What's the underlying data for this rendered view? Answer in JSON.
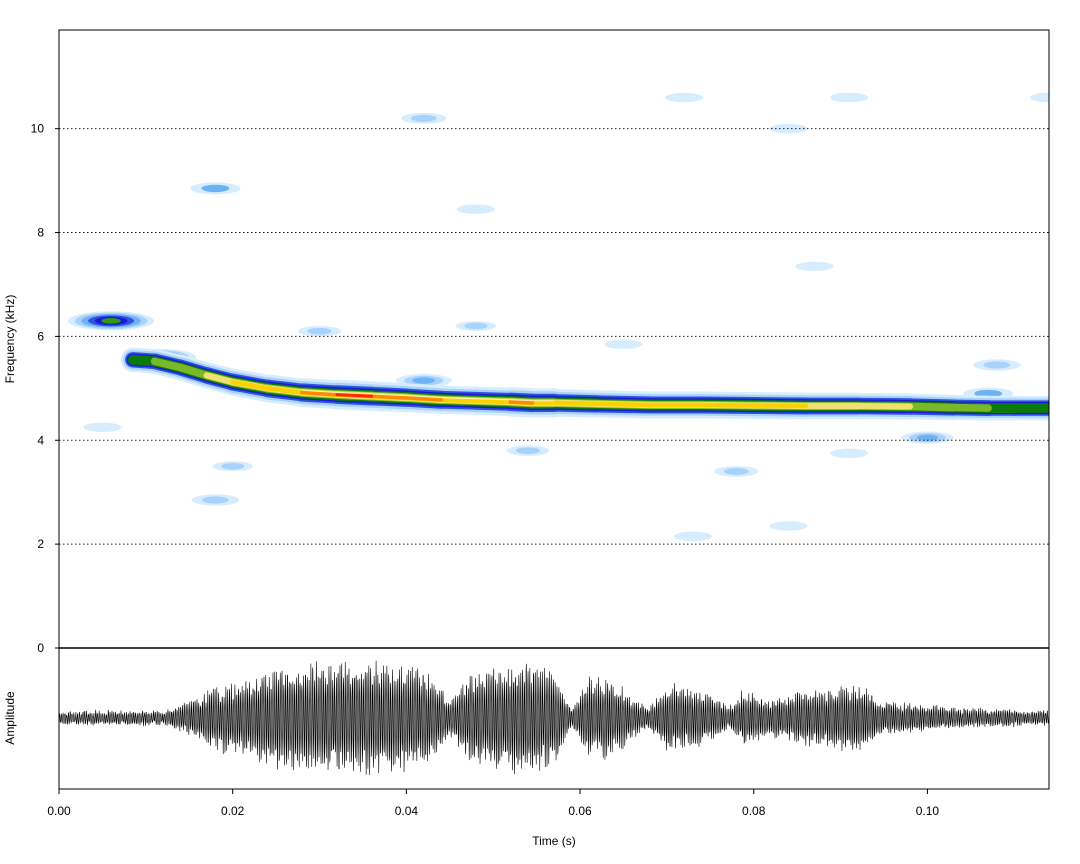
{
  "chart_data": [
    {
      "type": "heatmap",
      "panel": "spectrogram",
      "xlabel": "Time (s)",
      "ylabel": "Frequency (kHz)",
      "xlim": [
        0,
        0.114
      ],
      "ylim": [
        0,
        11.9
      ],
      "yticks": [
        0,
        2,
        4,
        6,
        8,
        10
      ],
      "grid": "horizontal dotted at y ticks",
      "colormap": [
        "#ffffff",
        "#d6ecff",
        "#a9d2fb",
        "#6fb2f2",
        "#2f52e0",
        "#1a1ad6",
        "#0a7a0a",
        "#2f9a13",
        "#7ab82a",
        "#f0e070",
        "#ffd000",
        "#ff8a00",
        "#ff2a00",
        "#ff0000"
      ],
      "main_contour": [
        {
          "t": 0.0085,
          "f": 5.55,
          "level": 0.5
        },
        {
          "t": 0.011,
          "f": 5.52,
          "level": 0.55
        },
        {
          "t": 0.014,
          "f": 5.4,
          "level": 0.6
        },
        {
          "t": 0.017,
          "f": 5.25,
          "level": 0.65
        },
        {
          "t": 0.02,
          "f": 5.12,
          "level": 0.72
        },
        {
          "t": 0.024,
          "f": 5.0,
          "level": 0.78
        },
        {
          "t": 0.028,
          "f": 4.92,
          "level": 0.85
        },
        {
          "t": 0.032,
          "f": 4.88,
          "level": 0.95
        },
        {
          "t": 0.036,
          "f": 4.85,
          "level": 0.97
        },
        {
          "t": 0.04,
          "f": 4.82,
          "level": 0.9
        },
        {
          "t": 0.044,
          "f": 4.78,
          "level": 0.85
        },
        {
          "t": 0.048,
          "f": 4.76,
          "level": 0.82
        },
        {
          "t": 0.052,
          "f": 4.74,
          "level": 0.88
        },
        {
          "t": 0.0545,
          "f": 4.72,
          "level": 1.0
        },
        {
          "t": 0.057,
          "f": 4.72,
          "level": 0.82
        },
        {
          "t": 0.062,
          "f": 4.7,
          "level": 0.76
        },
        {
          "t": 0.068,
          "f": 4.68,
          "level": 0.74
        },
        {
          "t": 0.074,
          "f": 4.68,
          "level": 0.73
        },
        {
          "t": 0.08,
          "f": 4.67,
          "level": 0.74
        },
        {
          "t": 0.086,
          "f": 4.66,
          "level": 0.73
        },
        {
          "t": 0.092,
          "f": 4.66,
          "level": 0.7
        },
        {
          "t": 0.098,
          "f": 4.65,
          "level": 0.66
        },
        {
          "t": 0.103,
          "f": 4.63,
          "level": 0.6
        },
        {
          "t": 0.107,
          "f": 4.62,
          "level": 0.55
        },
        {
          "t": 0.11,
          "f": 4.62,
          "level": 0.52
        },
        {
          "t": 0.114,
          "f": 4.62,
          "level": 0.5
        }
      ],
      "noise_blobs": [
        {
          "t": 0.006,
          "f": 6.3,
          "level": 0.5
        },
        {
          "t": 0.0115,
          "f": 5.6,
          "level": 0.4
        },
        {
          "t": 0.018,
          "f": 8.85,
          "level": 0.2
        },
        {
          "t": 0.018,
          "f": 2.85,
          "level": 0.18
        },
        {
          "t": 0.02,
          "f": 3.5,
          "level": 0.12
        },
        {
          "t": 0.042,
          "f": 10.2,
          "level": 0.16
        },
        {
          "t": 0.042,
          "f": 5.15,
          "level": 0.25
        },
        {
          "t": 0.03,
          "f": 6.1,
          "level": 0.14
        },
        {
          "t": 0.048,
          "f": 6.2,
          "level": 0.12
        },
        {
          "t": 0.054,
          "f": 3.8,
          "level": 0.14
        },
        {
          "t": 0.078,
          "f": 3.4,
          "level": 0.15
        },
        {
          "t": 0.073,
          "f": 2.15,
          "level": 0.1
        },
        {
          "t": 0.1,
          "f": 4.05,
          "level": 0.22
        },
        {
          "t": 0.107,
          "f": 4.9,
          "level": 0.2
        },
        {
          "t": 0.108,
          "f": 5.45,
          "level": 0.18
        },
        {
          "t": 0.084,
          "f": 10.0,
          "level": 0.1
        },
        {
          "t": 0.072,
          "f": 10.6,
          "level": 0.1
        },
        {
          "t": 0.091,
          "f": 10.6,
          "level": 0.1
        },
        {
          "t": 0.114,
          "f": 10.6,
          "level": 0.1
        },
        {
          "t": 0.005,
          "f": 4.25,
          "level": 0.1
        },
        {
          "t": 0.065,
          "f": 5.85,
          "level": 0.1
        },
        {
          "t": 0.091,
          "f": 3.75,
          "level": 0.1
        },
        {
          "t": 0.048,
          "f": 8.45,
          "level": 0.1
        },
        {
          "t": 0.087,
          "f": 7.35,
          "level": 0.1
        },
        {
          "t": 0.084,
          "f": 2.35,
          "level": 0.1
        }
      ]
    },
    {
      "type": "line",
      "panel": "oscillogram",
      "xlabel": "Time (s)",
      "ylabel": "Amplitude",
      "xlim": [
        0,
        0.114
      ],
      "xticks": [
        0.0,
        0.02,
        0.04,
        0.06,
        0.08,
        0.1
      ],
      "xtick_labels": [
        "0.00",
        "0.02",
        "0.04",
        "0.06",
        "0.08",
        "0.10"
      ],
      "envelope": {
        "t": [
          0.0,
          0.012,
          0.016,
          0.018,
          0.022,
          0.026,
          0.03,
          0.034,
          0.038,
          0.042,
          0.045,
          0.047,
          0.049,
          0.052,
          0.054,
          0.057,
          0.059,
          0.061,
          0.063,
          0.066,
          0.068,
          0.07,
          0.072,
          0.075,
          0.077,
          0.079,
          0.082,
          0.085,
          0.088,
          0.092,
          0.095,
          0.1,
          0.104,
          0.108,
          0.114
        ],
        "a": [
          0.11,
          0.12,
          0.35,
          0.55,
          0.65,
          0.9,
          0.92,
          0.95,
          0.93,
          0.85,
          0.3,
          0.72,
          0.8,
          0.95,
          1.0,
          0.78,
          0.15,
          0.7,
          0.72,
          0.35,
          0.18,
          0.58,
          0.52,
          0.4,
          0.18,
          0.48,
          0.3,
          0.48,
          0.46,
          0.58,
          0.28,
          0.22,
          0.16,
          0.14,
          0.12
        ]
      }
    }
  ]
}
